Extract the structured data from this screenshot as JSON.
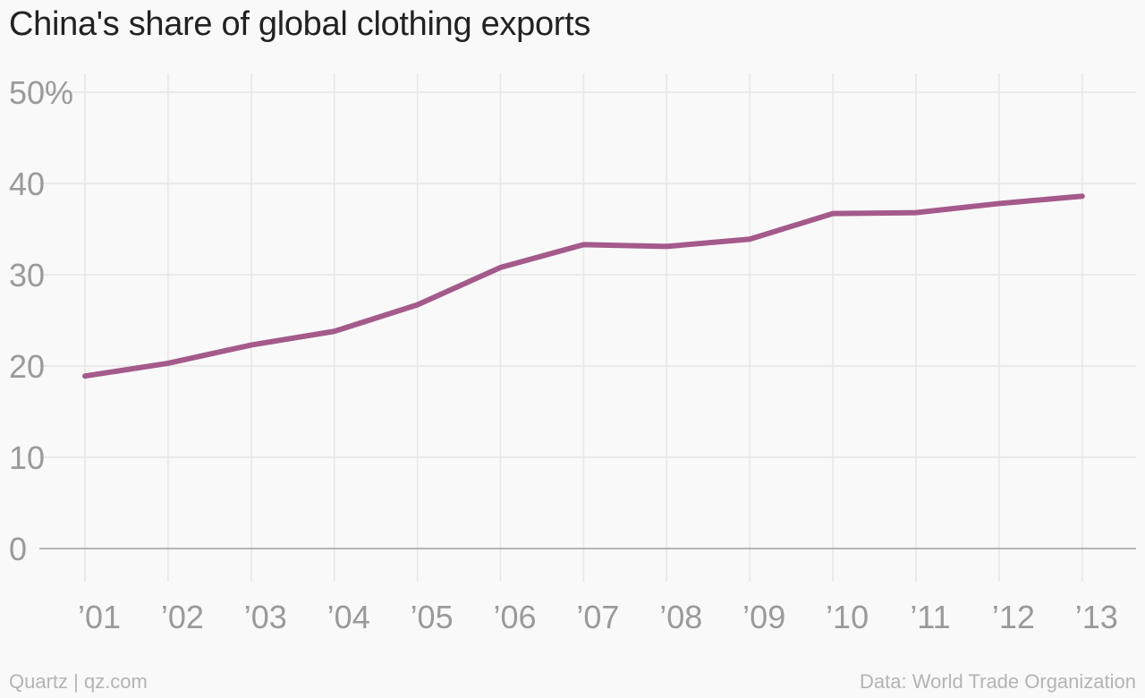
{
  "chart_data": {
    "type": "line",
    "title": "China's share of global clothing exports",
    "xlabel": "",
    "ylabel": "",
    "categories": [
      "’01",
      "’02",
      "’03",
      "’04",
      "’05",
      "’06",
      "’07",
      "’08",
      "’09",
      "’10",
      "’11",
      "’12",
      "’13"
    ],
    "y_tick_labels": [
      "0",
      "10",
      "20",
      "30",
      "40",
      "50%"
    ],
    "ylim": [
      0,
      50
    ],
    "grid": true,
    "series": [
      {
        "values": [
          18.9,
          20.3,
          22.3,
          23.8,
          26.7,
          30.8,
          33.3,
          33.1,
          33.9,
          36.7,
          36.8,
          37.8,
          38.6
        ],
        "color": "#a45a8a"
      }
    ]
  },
  "footer": {
    "source_left": "Quartz | qz.com",
    "source_right": "Data: World Trade Organization"
  },
  "colors": {
    "background": "#f9f9f9",
    "line": "#a45a8a",
    "grid": "#e6e6e6",
    "axis": "#a0a0a0",
    "tick_text": "#9a9a9a"
  }
}
